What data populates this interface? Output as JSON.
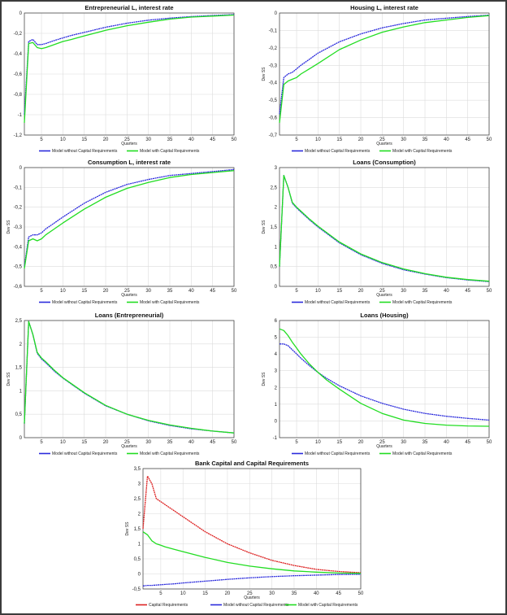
{
  "chart_data": [
    {
      "type": "line",
      "title": "Entrepreneurial L, interest rate",
      "xlabel": "Quarters",
      "ylabel": "",
      "xlim": [
        1,
        50
      ],
      "ylim": [
        -1.2,
        0
      ],
      "xticks": [
        "5",
        "10",
        "15",
        "20",
        "25",
        "30",
        "35",
        "40",
        "45",
        "50"
      ],
      "yticks": [
        "-1,2",
        "-1",
        "-0,8",
        "-0,6",
        "-0,4",
        "-0,2",
        "0"
      ],
      "grid": true,
      "legend": "bottom",
      "x": [
        1,
        2,
        3,
        4,
        5,
        6,
        8,
        10,
        12,
        15,
        20,
        25,
        30,
        35,
        40,
        45,
        50
      ],
      "series": [
        {
          "name": "Model without Capital Requirements",
          "color": "#2b2bdc",
          "values": [
            -1.0,
            -0.28,
            -0.26,
            -0.31,
            -0.31,
            -0.3,
            -0.27,
            -0.245,
            -0.22,
            -0.19,
            -0.14,
            -0.1,
            -0.07,
            -0.05,
            -0.035,
            -0.025,
            -0.015
          ]
        },
        {
          "name": "Model with Capital Requirements",
          "color": "#22dd22",
          "values": [
            -1.08,
            -0.3,
            -0.29,
            -0.34,
            -0.35,
            -0.34,
            -0.31,
            -0.28,
            -0.26,
            -0.225,
            -0.17,
            -0.125,
            -0.09,
            -0.06,
            -0.04,
            -0.03,
            -0.02
          ]
        }
      ]
    },
    {
      "type": "line",
      "title": "Housing L, interest rate",
      "xlabel": "Quarters",
      "ylabel": "Dev SS",
      "xlim": [
        1,
        50
      ],
      "ylim": [
        -0.7,
        0
      ],
      "xticks": [
        "5",
        "10",
        "15",
        "20",
        "25",
        "30",
        "35",
        "40",
        "45",
        "50"
      ],
      "yticks": [
        "-0,7",
        "-0,6",
        "-0,5",
        "-0,4",
        "-0,3",
        "-0,2",
        "-0,1",
        "0"
      ],
      "grid": true,
      "legend": "bottom",
      "x": [
        1,
        2,
        3,
        4,
        5,
        6,
        8,
        10,
        15,
        20,
        25,
        30,
        35,
        40,
        45,
        50
      ],
      "series": [
        {
          "name": "Model without Capital Requirements",
          "color": "#2b2bdc",
          "values": [
            -0.58,
            -0.37,
            -0.35,
            -0.34,
            -0.32,
            -0.3,
            -0.265,
            -0.23,
            -0.165,
            -0.12,
            -0.085,
            -0.06,
            -0.04,
            -0.03,
            -0.02,
            -0.012
          ]
        },
        {
          "name": "Model with Capital Requirements",
          "color": "#22dd22",
          "values": [
            -0.63,
            -0.41,
            -0.39,
            -0.38,
            -0.37,
            -0.35,
            -0.32,
            -0.29,
            -0.21,
            -0.155,
            -0.11,
            -0.08,
            -0.055,
            -0.04,
            -0.025,
            -0.015
          ]
        }
      ]
    },
    {
      "type": "line",
      "title": "Consumption L, interest rate",
      "xlabel": "Quarters",
      "ylabel": "Dev SS",
      "xlim": [
        1,
        50
      ],
      "ylim": [
        -0.6,
        0
      ],
      "xticks": [
        "5",
        "10",
        "15",
        "20",
        "25",
        "30",
        "35",
        "40",
        "45",
        "50"
      ],
      "yticks": [
        "-0,6",
        "-0,5",
        "-0,4",
        "-0,3",
        "-0,2",
        "-0,1",
        "0"
      ],
      "grid": true,
      "legend": "bottom",
      "x": [
        1,
        2,
        3,
        4,
        5,
        6,
        8,
        10,
        15,
        20,
        25,
        30,
        35,
        40,
        45,
        50
      ],
      "series": [
        {
          "name": "Model without Capital Requirements",
          "color": "#2b2bdc",
          "values": [
            -0.5,
            -0.35,
            -0.34,
            -0.34,
            -0.33,
            -0.31,
            -0.28,
            -0.25,
            -0.18,
            -0.125,
            -0.085,
            -0.06,
            -0.04,
            -0.03,
            -0.02,
            -0.01
          ]
        },
        {
          "name": "Model with Capital Requirements",
          "color": "#22dd22",
          "values": [
            -0.51,
            -0.37,
            -0.36,
            -0.37,
            -0.36,
            -0.34,
            -0.31,
            -0.28,
            -0.21,
            -0.15,
            -0.105,
            -0.075,
            -0.05,
            -0.035,
            -0.025,
            -0.015
          ]
        }
      ]
    },
    {
      "type": "line",
      "title": "Loans (Consumption)",
      "xlabel": "Quarters",
      "ylabel": "Dev SS",
      "xlim": [
        1,
        50
      ],
      "ylim": [
        0,
        3
      ],
      "xticks": [
        "5",
        "10",
        "15",
        "20",
        "25",
        "30",
        "35",
        "40",
        "45",
        "50"
      ],
      "yticks": [
        "0",
        "0,5",
        "1",
        "1,5",
        "2",
        "2,5",
        "3"
      ],
      "grid": true,
      "legend": "bottom",
      "x": [
        1,
        2,
        3,
        4,
        5,
        6,
        8,
        10,
        15,
        20,
        25,
        30,
        35,
        40,
        45,
        50
      ],
      "series": [
        {
          "name": "Model without Capital Requirements",
          "color": "#2b2bdc",
          "values": [
            0.5,
            2.8,
            2.5,
            2.1,
            1.98,
            1.88,
            1.68,
            1.5,
            1.1,
            0.8,
            0.58,
            0.42,
            0.31,
            0.22,
            0.16,
            0.12
          ]
        },
        {
          "name": "Model with Capital Requirements",
          "color": "#22dd22",
          "values": [
            0.5,
            2.8,
            2.5,
            2.12,
            2.0,
            1.9,
            1.7,
            1.52,
            1.12,
            0.82,
            0.6,
            0.44,
            0.32,
            0.23,
            0.17,
            0.13
          ]
        }
      ]
    },
    {
      "type": "line",
      "title": "Loans (Entrepreneurial)",
      "xlabel": "Quarters",
      "ylabel": "Dev SS",
      "xlim": [
        1,
        50
      ],
      "ylim": [
        0,
        2.5
      ],
      "xticks": [
        "5",
        "10",
        "15",
        "20",
        "25",
        "30",
        "35",
        "40",
        "45",
        "50"
      ],
      "yticks": [
        "0",
        "0,5",
        "1",
        "1,5",
        "2",
        "2,5"
      ],
      "grid": true,
      "legend": "bottom",
      "x": [
        1,
        2,
        3,
        4,
        5,
        6,
        8,
        10,
        15,
        20,
        25,
        30,
        35,
        40,
        45,
        50
      ],
      "series": [
        {
          "name": "Model without Capital Requirements",
          "color": "#2b2bdc",
          "values": [
            0.3,
            2.48,
            2.2,
            1.8,
            1.68,
            1.6,
            1.42,
            1.27,
            0.95,
            0.68,
            0.5,
            0.36,
            0.26,
            0.19,
            0.14,
            0.1
          ]
        },
        {
          "name": "Model with Capital Requirements",
          "color": "#22dd22",
          "values": [
            0.3,
            2.48,
            2.2,
            1.82,
            1.7,
            1.62,
            1.44,
            1.28,
            0.96,
            0.69,
            0.5,
            0.37,
            0.27,
            0.2,
            0.14,
            0.1
          ]
        }
      ]
    },
    {
      "type": "line",
      "title": "Loans (Housing)",
      "xlabel": "Quarters",
      "ylabel": "Dev SS",
      "xlim": [
        1,
        50
      ],
      "ylim": [
        -1,
        6
      ],
      "xticks": [
        "5",
        "10",
        "15",
        "20",
        "25",
        "30",
        "35",
        "40",
        "45",
        "50"
      ],
      "yticks": [
        "-1",
        "0",
        "1",
        "2",
        "3",
        "4",
        "5",
        "6"
      ],
      "grid": true,
      "legend": "bottom",
      "x": [
        1,
        2,
        3,
        4,
        5,
        6,
        8,
        10,
        12,
        15,
        20,
        25,
        30,
        35,
        40,
        45,
        50
      ],
      "series": [
        {
          "name": "Model without Capital Requirements",
          "color": "#2b2bdc",
          "values": [
            4.6,
            4.6,
            4.5,
            4.25,
            4.0,
            3.75,
            3.3,
            2.9,
            2.55,
            2.1,
            1.5,
            1.05,
            0.7,
            0.45,
            0.28,
            0.15,
            0.05
          ]
        },
        {
          "name": "Model with Capital Requirements",
          "color": "#22dd22",
          "values": [
            5.5,
            5.4,
            5.1,
            4.7,
            4.35,
            4.0,
            3.4,
            2.9,
            2.45,
            1.9,
            1.05,
            0.45,
            0.05,
            -0.15,
            -0.25,
            -0.3,
            -0.32
          ]
        }
      ]
    },
    {
      "type": "line",
      "title": "Bank Capital and Capital Requirements",
      "xlabel": "Quarters",
      "ylabel": "Dev SS",
      "xlim": [
        1,
        50
      ],
      "ylim": [
        -0.5,
        3.5
      ],
      "xticks": [
        "5",
        "10",
        "15",
        "20",
        "25",
        "30",
        "35",
        "40",
        "45",
        "50"
      ],
      "yticks": [
        "-0,5",
        "0",
        "0,5",
        "1",
        "1,5",
        "2",
        "2,5",
        "3",
        "3,5"
      ],
      "grid": true,
      "legend": "bottom",
      "x": [
        1,
        2,
        3,
        4,
        5,
        6,
        8,
        10,
        15,
        20,
        25,
        30,
        35,
        40,
        45,
        50
      ],
      "series": [
        {
          "name": "Capital Requirements",
          "color": "#dd2222",
          "values": [
            1.5,
            3.25,
            3.0,
            2.5,
            2.4,
            2.3,
            2.1,
            1.9,
            1.4,
            1.0,
            0.7,
            0.45,
            0.28,
            0.15,
            0.08,
            0.04
          ]
        },
        {
          "name": "Model without Capital Requirements",
          "color": "#2b2bdc",
          "values": [
            -0.4,
            -0.38,
            -0.38,
            -0.37,
            -0.36,
            -0.35,
            -0.33,
            -0.3,
            -0.24,
            -0.18,
            -0.13,
            -0.09,
            -0.06,
            -0.04,
            -0.02,
            -0.01
          ]
        },
        {
          "name": "Model with Capital Requirements",
          "color": "#22dd22",
          "values": [
            1.4,
            1.3,
            1.1,
            1.0,
            0.95,
            0.9,
            0.82,
            0.74,
            0.55,
            0.38,
            0.26,
            0.17,
            0.1,
            0.06,
            0.03,
            0.02
          ]
        }
      ]
    }
  ]
}
